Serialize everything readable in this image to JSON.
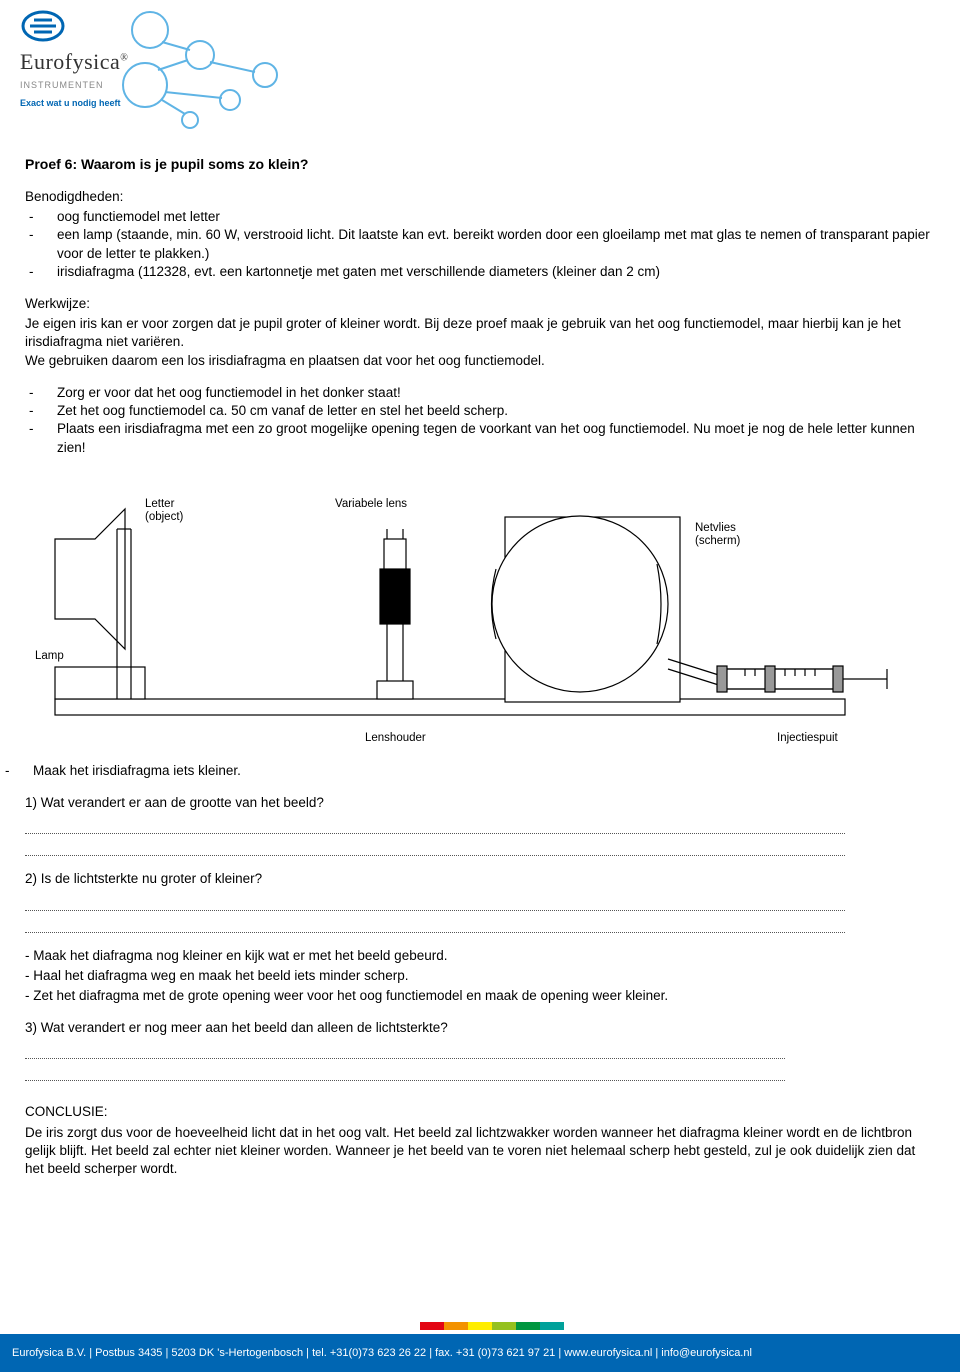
{
  "logo": {
    "name_html": "Eurofysica",
    "sub": "INSTRUMENTEN",
    "tag": "Exact wat u nodig heeft",
    "accent": "#0066b3",
    "decor_color": "#5fb4e5"
  },
  "title": "Proef 6: Waarom is je pupil soms zo klein?",
  "benodigdheden": {
    "heading": "Benodigdheden:",
    "items": [
      "oog functiemodel met letter",
      "een lamp (staande, min. 60 W, verstrooid licht. Dit laatste kan evt. bereikt worden door een gloeilamp met mat glas te nemen of transparant papier voor de letter te plakken.)",
      "irisdiafragma (112328, evt. een kartonnetje met gaten met verschillende diameters (kleiner dan 2 cm)"
    ]
  },
  "werkwijze": {
    "heading": "Werkwijze:",
    "intro": "Je eigen iris kan er voor zorgen dat je pupil groter of kleiner wordt. Bij deze proef maak je gebruik van het oog functiemodel, maar hierbij kan je het irisdiafragma niet variëren.\nWe gebruiken daarom een los irisdiafragma en plaatsen dat voor het oog functiemodel.",
    "steps": [
      "Zorg er voor dat het oog functiemodel in het donker staat!",
      "Zet het oog functiemodel ca. 50 cm vanaf de letter en stel het beeld scherp.",
      "Plaats een irisdiafragma met een zo groot mogelijke opening tegen de voorkant van het oog functiemodel. Nu moet je nog de hele letter kunnen zien!"
    ]
  },
  "diagram": {
    "labels": {
      "letter": "Letter\n(object)",
      "varlens": "Variabele lens",
      "netvlies": "Netvlies\n(scherm)",
      "lamp": "Lamp",
      "lenshouder": "Lenshouder",
      "injectiespuit": "Injectiespuit"
    },
    "stroke": "#000000",
    "fill": "#ffffff",
    "gray": "#999999"
  },
  "instr_after_diagram": "Maak het irisdiafragma iets kleiner.",
  "questions": {
    "q1": "1) Wat verandert er aan de grootte van het beeld?",
    "q2": "2) Is de lichtsterkte nu groter of kleiner?",
    "mid_instr": [
      "- Maak het diafragma nog kleiner en kijk wat er met het beeld   gebeurd.",
      "- Haal het diafragma weg en maak het beeld iets minder   scherp.",
      "- Zet het diafragma met de grote opening weer voor het oog functiemodel en maak de opening weer kleiner."
    ],
    "q3": "3) Wat verandert er nog meer aan het beeld dan alleen de lichtsterkte?"
  },
  "conclusie": {
    "heading": "CONCLUSIE:",
    "text": "De iris zorgt dus voor de hoeveelheid licht dat in het oog valt. Het beeld zal lichtzwakker worden wanneer het diafragma kleiner wordt en de lichtbron gelijk blijft. Het beeld zal echter niet kleiner worden. Wanneer je het beeld van te voren niet helemaal scherp hebt gesteld, zul je ook duidelijk zien dat het beeld scherper wordt."
  },
  "footer": {
    "stripe_colors": [
      "#e30613",
      "#f39200",
      "#ffed00",
      "#95c11f",
      "#009640",
      "#00a19a"
    ],
    "bg": "#0066b3",
    "text": "Eurofysica B.V. | Postbus 3435 | 5203 DK 's-Hertogenbosch | tel. +31(0)73 623 26 22 | fax. +31 (0)73 621 97 21 | www.eurofysica.nl | info@eurofysica.nl"
  }
}
